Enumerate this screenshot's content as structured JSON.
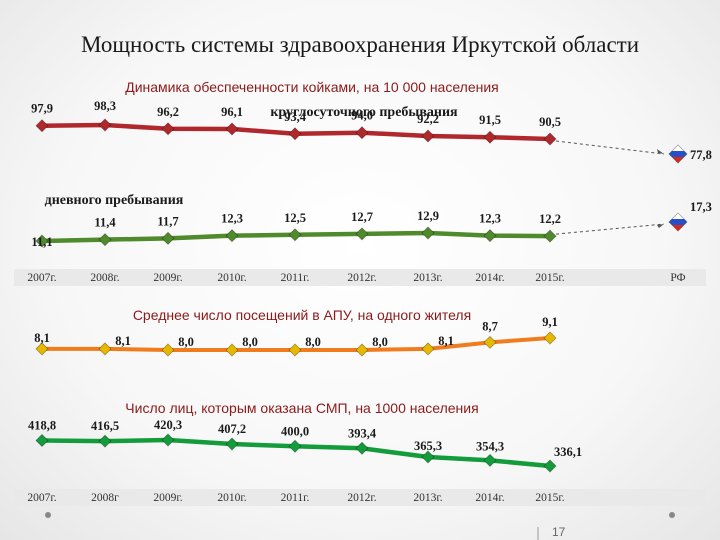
{
  "page": {
    "title": "Мощность системы здравоохранения Иркутской области",
    "page_number": "17"
  },
  "colors": {
    "beds_24h": "#b0282c",
    "day_hospital": "#4f8a2c",
    "visits": "#f07c1e",
    "ambulance": "#149c3c",
    "marker": "#e8b800",
    "grid_band": "#e9e9e9"
  },
  "chart_data": [
    {
      "type": "line",
      "title": "Динамика обеспеченности койками, на 10 000 населения",
      "categories": [
        "2007г.",
        "2008г.",
        "2009г.",
        "2010г.",
        "2011г.",
        "2012г.",
        "2013г.",
        "2014г.",
        "2015г."
      ],
      "extra_category": "РФ",
      "series": [
        {
          "name": "круглосуточного пребывания",
          "values": [
            97.9,
            98.3,
            96.2,
            96.1,
            93.4,
            94.0,
            92.2,
            91.5,
            90.5
          ],
          "labels": [
            "97,9",
            "98,3",
            "96,2",
            "96,1",
            "93,4",
            "94,0",
            "92,2",
            "91,5",
            "90,5"
          ],
          "rf_value": 77.8,
          "rf_label": "77,8"
        },
        {
          "name": "дневного пребывания",
          "values": [
            11.1,
            11.4,
            11.7,
            12.3,
            12.5,
            12.7,
            12.9,
            12.3,
            12.2
          ],
          "labels": [
            "11,1",
            "11,4",
            "11,7",
            "12,3",
            "12,5",
            "12,7",
            "12,9",
            "12,3",
            "12,2"
          ],
          "rf_value": 17.3,
          "rf_label": "17,3"
        }
      ]
    },
    {
      "type": "line",
      "title": "Среднее число посещений в АПУ, на одного жителя",
      "categories": [
        "2007г.",
        "2008г.",
        "2009г.",
        "2010г.",
        "2011г.",
        "2012г.",
        "2013г.",
        "2014г.",
        "2015г."
      ],
      "values": [
        8.1,
        8.1,
        8.0,
        8.0,
        8.0,
        8.0,
        8.1,
        8.7,
        9.1
      ],
      "labels": [
        "8,1",
        "8,1",
        "8,0",
        "8,0",
        "8,0",
        "8,0",
        "8,1",
        "8,7",
        "9,1"
      ]
    },
    {
      "type": "line",
      "title": "Число лиц, которым оказана СМП, на 1000 населения",
      "categories": [
        "2007г.",
        "2008г",
        "2009г.",
        "2010г.",
        "2011г.",
        "2012г.",
        "2013г.",
        "2014г.",
        "2015г."
      ],
      "values": [
        418.8,
        416.5,
        420.3,
        407.2,
        400.0,
        393.4,
        365.3,
        354.3,
        336.1
      ],
      "labels": [
        "418,8",
        "416,5",
        "420,3",
        "407,2",
        "400,0",
        "393,4",
        "365,3",
        "354,3",
        "336,1"
      ]
    }
  ]
}
